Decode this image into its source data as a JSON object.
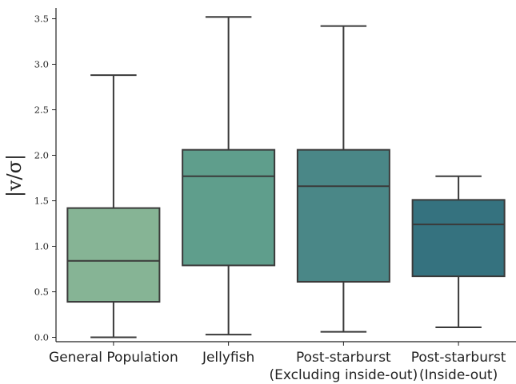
{
  "chart_data": {
    "type": "box",
    "ylabel": "|v/σ|",
    "ylim": [
      -0.05,
      3.65
    ],
    "yticks": [
      "0.0",
      "0.5",
      "1.0",
      "1.5",
      "2.0",
      "2.5",
      "3.0",
      "3.5"
    ],
    "grid": false,
    "categories": [
      [
        "General Population"
      ],
      [
        "Jellyfish"
      ],
      [
        "Post-starburst",
        "(Excluding inside-out)"
      ],
      [
        "Post-starburst",
        "(Inside-out)"
      ]
    ],
    "boxes": [
      {
        "min": 0.0,
        "q1": 0.39,
        "median": 0.84,
        "q3": 1.42,
        "max": 2.88,
        "color": "#86b495"
      },
      {
        "min": 0.03,
        "q1": 0.79,
        "median": 1.77,
        "q3": 2.06,
        "max": 3.52,
        "color": "#5f9e8c"
      },
      {
        "min": 0.06,
        "q1": 0.61,
        "median": 1.66,
        "q3": 2.06,
        "max": 3.42,
        "color": "#4a8787"
      },
      {
        "min": 0.11,
        "q1": 0.67,
        "median": 1.24,
        "q3": 1.51,
        "max": 1.77,
        "color": "#35727f"
      }
    ]
  }
}
